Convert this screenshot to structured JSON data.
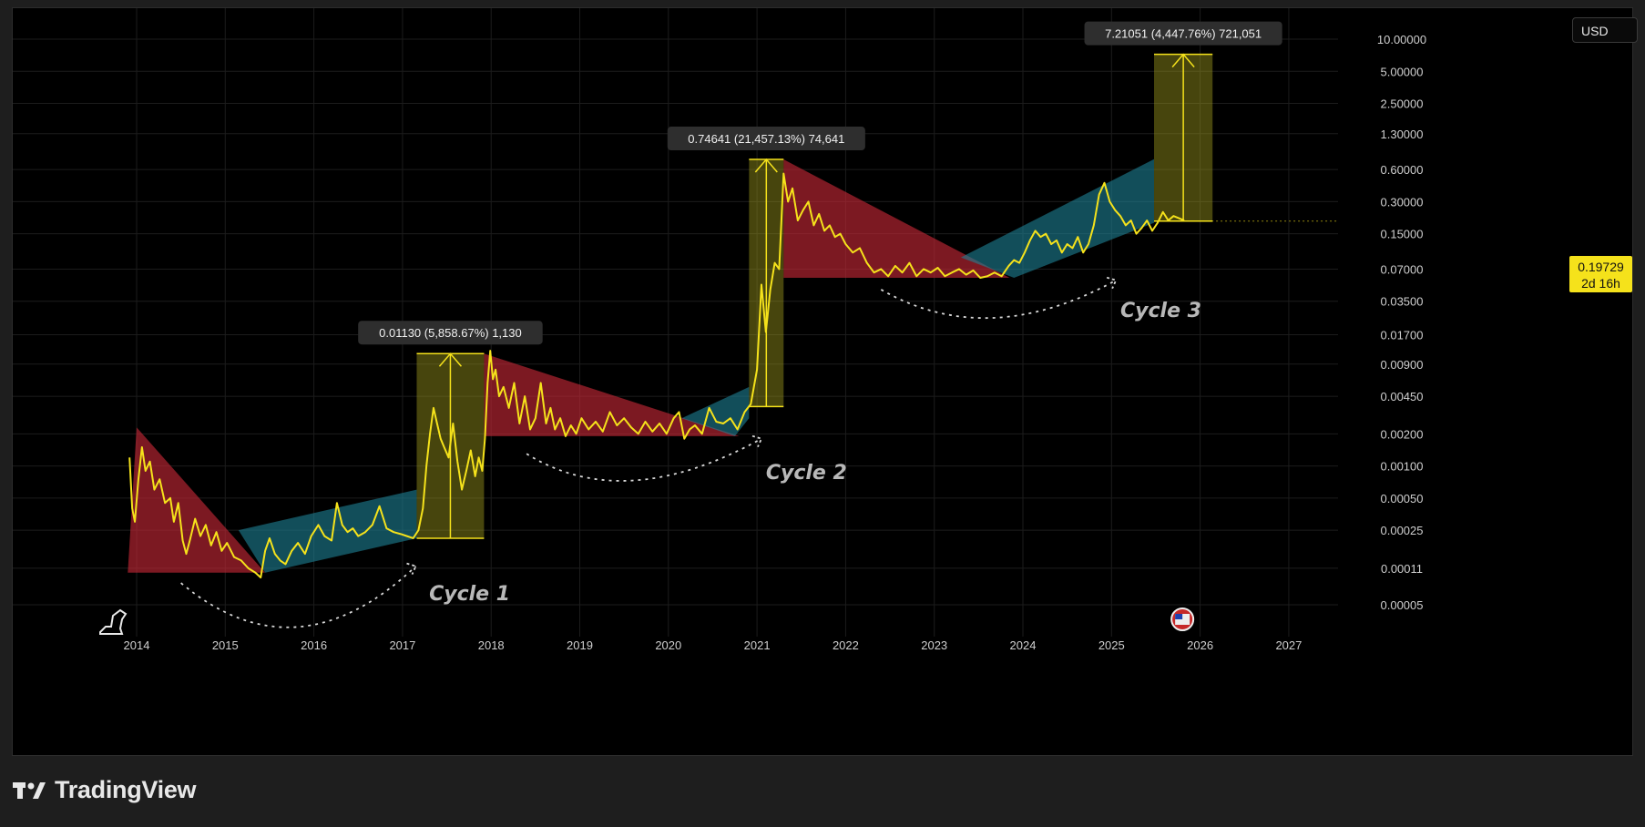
{
  "app": {
    "brand": "TradingView"
  },
  "ui": {
    "currency_button": "USD",
    "price_tag": {
      "price": "0.19729",
      "countdown": "2d 16h"
    }
  },
  "chart_data": {
    "type": "line",
    "y_scale": "log",
    "x_ticks": [
      "2014",
      "2015",
      "2016",
      "2017",
      "2018",
      "2019",
      "2020",
      "2021",
      "2022",
      "2023",
      "2024",
      "2025",
      "2026",
      "2027"
    ],
    "y_ticks": [
      "10.00000",
      "5.00000",
      "2.50000",
      "1.30000",
      "0.60000",
      "0.30000",
      "0.15000",
      "0.07000",
      "0.03500",
      "0.01700",
      "0.00900",
      "0.00450",
      "0.00200",
      "0.00100",
      "0.00050",
      "0.00025",
      "0.00011",
      "0.00005"
    ],
    "series": [
      {
        "x": [
          2013.92,
          2013.95,
          2013.98,
          2014.02,
          2014.06,
          2014.1,
          2014.15,
          2014.2,
          2014.26,
          2014.32,
          2014.38,
          2014.42,
          2014.47,
          2014.52,
          2014.56,
          2014.6,
          2014.66,
          2014.72,
          2014.78,
          2014.84,
          2014.9,
          2014.96,
          2015.02,
          2015.1,
          2015.18,
          2015.26,
          2015.34,
          2015.4,
          2015.45,
          2015.5,
          2015.56,
          2015.62,
          2015.68,
          2015.75,
          2015.82,
          2015.9,
          2015.97,
          2016.05,
          2016.12,
          2016.2,
          2016.26,
          2016.32,
          2016.38,
          2016.44,
          2016.5,
          2016.58,
          2016.66,
          2016.74,
          2016.82,
          2016.9,
          2016.98,
          2017.05,
          2017.12,
          2017.18,
          2017.23,
          2017.27,
          2017.31,
          2017.35,
          2017.39,
          2017.43,
          2017.47,
          2017.52,
          2017.57,
          2017.62,
          2017.67,
          2017.72,
          2017.77,
          2017.82,
          2017.86,
          2017.9,
          2017.93,
          2017.96,
          2017.99,
          2018.02,
          2018.05,
          2018.09,
          2018.14,
          2018.2,
          2018.26,
          2018.32,
          2018.38,
          2018.44,
          2018.5,
          2018.56,
          2018.62,
          2018.67,
          2018.72,
          2018.78,
          2018.84,
          2018.9,
          2018.96,
          2019.02,
          2019.1,
          2019.18,
          2019.26,
          2019.34,
          2019.42,
          2019.5,
          2019.58,
          2019.66,
          2019.74,
          2019.82,
          2019.9,
          2019.98,
          2020.06,
          2020.12,
          2020.18,
          2020.24,
          2020.3,
          2020.38,
          2020.46,
          2020.54,
          2020.62,
          2020.7,
          2020.78,
          2020.86,
          2020.93,
          2021.0,
          2021.05,
          2021.1,
          2021.15,
          2021.2,
          2021.25,
          2021.3,
          2021.35,
          2021.4,
          2021.46,
          2021.52,
          2021.58,
          2021.64,
          2021.7,
          2021.76,
          2021.82,
          2021.88,
          2021.94,
          2022.0,
          2022.08,
          2022.16,
          2022.24,
          2022.32,
          2022.4,
          2022.48,
          2022.56,
          2022.64,
          2022.72,
          2022.8,
          2022.88,
          2022.96,
          2023.04,
          2023.12,
          2023.2,
          2023.28,
          2023.36,
          2023.44,
          2023.52,
          2023.6,
          2023.68,
          2023.76,
          2023.84,
          2023.9,
          2023.96,
          2024.02,
          2024.08,
          2024.14,
          2024.2,
          2024.26,
          2024.32,
          2024.38,
          2024.44,
          2024.5,
          2024.56,
          2024.62,
          2024.68,
          2024.74,
          2024.8,
          2024.86,
          2024.92,
          2024.98,
          2025.04,
          2025.1,
          2025.16,
          2025.22,
          2025.28,
          2025.34,
          2025.4,
          2025.46,
          2025.52,
          2025.58,
          2025.64,
          2025.7,
          2025.76,
          2025.82
        ],
        "y": [
          0.0012,
          0.0004,
          0.0003,
          0.00075,
          0.0015,
          0.0009,
          0.0011,
          0.0006,
          0.00075,
          0.00045,
          0.0005,
          0.0003,
          0.00045,
          0.0002,
          0.00015,
          0.0002,
          0.00032,
          0.00022,
          0.00028,
          0.00018,
          0.00024,
          0.00016,
          0.00019,
          0.00014,
          0.00013,
          0.00011,
          0.0001,
          9e-05,
          0.00016,
          0.00021,
          0.00015,
          0.00013,
          0.00012,
          0.00016,
          0.00019,
          0.00015,
          0.00022,
          0.00028,
          0.00022,
          0.0002,
          0.00045,
          0.00028,
          0.00024,
          0.00026,
          0.00022,
          0.00024,
          0.00028,
          0.00042,
          0.00026,
          0.00024,
          0.00023,
          0.00022,
          0.00021,
          0.00025,
          0.0004,
          0.001,
          0.002,
          0.0035,
          0.0025,
          0.0018,
          0.0015,
          0.0012,
          0.0025,
          0.0011,
          0.0006,
          0.0009,
          0.0014,
          0.0008,
          0.0012,
          0.0009,
          0.0018,
          0.006,
          0.012,
          0.0065,
          0.008,
          0.0045,
          0.0055,
          0.0035,
          0.006,
          0.0025,
          0.0045,
          0.0022,
          0.0028,
          0.006,
          0.0025,
          0.0035,
          0.0022,
          0.0028,
          0.0019,
          0.0024,
          0.002,
          0.0028,
          0.0022,
          0.0026,
          0.0021,
          0.0032,
          0.0024,
          0.0028,
          0.0023,
          0.002,
          0.0026,
          0.0021,
          0.0025,
          0.002,
          0.0028,
          0.0032,
          0.0018,
          0.0022,
          0.0024,
          0.002,
          0.0035,
          0.0026,
          0.0025,
          0.0028,
          0.0022,
          0.0032,
          0.0038,
          0.008,
          0.05,
          0.018,
          0.045,
          0.08,
          0.07,
          0.55,
          0.3,
          0.4,
          0.2,
          0.25,
          0.3,
          0.18,
          0.23,
          0.16,
          0.18,
          0.14,
          0.15,
          0.12,
          0.1,
          0.11,
          0.08,
          0.065,
          0.07,
          0.06,
          0.075,
          0.065,
          0.08,
          0.06,
          0.07,
          0.065,
          0.072,
          0.06,
          0.065,
          0.07,
          0.062,
          0.068,
          0.058,
          0.06,
          0.065,
          0.06,
          0.075,
          0.085,
          0.08,
          0.1,
          0.13,
          0.16,
          0.14,
          0.15,
          0.12,
          0.13,
          0.1,
          0.12,
          0.11,
          0.14,
          0.1,
          0.12,
          0.18,
          0.35,
          0.45,
          0.3,
          0.25,
          0.22,
          0.18,
          0.2,
          0.15,
          0.17,
          0.2,
          0.16,
          0.19,
          0.24,
          0.2,
          0.22,
          0.21,
          0.2
        ]
      }
    ],
    "annotations": {
      "measurements": [
        {
          "label": "0.01130 (5,858.67%) 1,130",
          "x0": 2017.16,
          "x1": 2017.92,
          "y_low": 0.00021,
          "y_high": 0.0113
        },
        {
          "label": "0.74641 (21,457.13%) 74,641",
          "x0": 2020.91,
          "x1": 2021.3,
          "y_low": 0.0036,
          "y_high": 0.74641
        },
        {
          "label": "7.21051 (4,447.76%) 721,051",
          "x0": 2025.48,
          "x1": 2026.14,
          "y_low": 0.19729,
          "y_high": 7.21051
        }
      ],
      "cycles": [
        "Cycle 1",
        "Cycle 2",
        "Cycle 3"
      ]
    }
  }
}
